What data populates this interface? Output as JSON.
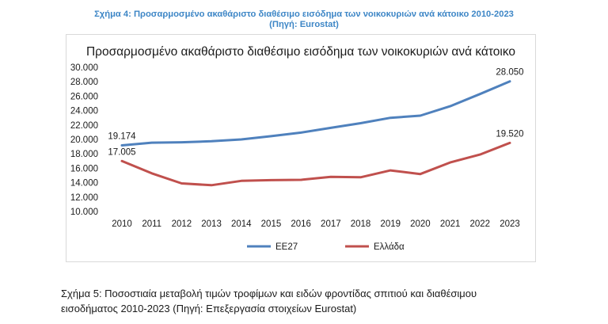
{
  "figure_caption": {
    "line1": "Σχήμα 4: Προσαρμοσμένο ακαθάριστο διαθέσιμο εισόδημα των νοικοκυριών ανά κάτοικο 2010-2023",
    "line2": "(Πηγή: Eurostat)"
  },
  "bottom_caption": {
    "line1": "Σχήμα 5: Ποσοστιαία μεταβολή τιμών τροφίμων και ειδών φροντίδας σπιτιού και διαθέσιμου",
    "line2": "εισοδήματος 2010-2023 (Πηγή: Επεξεργασία στοιχείων Eurostat)"
  },
  "colors": {
    "eu27": "#4f81bd",
    "greece": "#c0504d",
    "axis_text": "#1a1a1a"
  },
  "chart_data": {
    "type": "line",
    "title": "Προσαρμοσμένο ακαθάριστο διαθέσιμο εισόδημα των νοικοκυριών ανά κάτοικο",
    "categories": [
      "2010",
      "2011",
      "2012",
      "2013",
      "2014",
      "2015",
      "2016",
      "2017",
      "2018",
      "2019",
      "2020",
      "2021",
      "2022",
      "2023"
    ],
    "ylim": [
      10000,
      30000
    ],
    "y_ticks": [
      10000,
      12000,
      14000,
      16000,
      18000,
      20000,
      22000,
      24000,
      26000,
      28000,
      30000
    ],
    "y_tick_labels": [
      "10.000",
      "12.000",
      "14.000",
      "16.000",
      "18.000",
      "20.000",
      "22.000",
      "24.000",
      "26.000",
      "28.000",
      "30.000"
    ],
    "grid": false,
    "legend_position": "bottom",
    "series": [
      {
        "name": "ΕΕ27",
        "values": [
          19174,
          19550,
          19600,
          19750,
          20000,
          20450,
          20950,
          21600,
          22250,
          23000,
          23300,
          24600,
          26300,
          28050
        ]
      },
      {
        "name": "Ελλάδα",
        "values": [
          17005,
          15300,
          13900,
          13650,
          14250,
          14350,
          14400,
          14800,
          14750,
          15700,
          15200,
          16800,
          17900,
          19520
        ]
      }
    ],
    "data_labels": [
      {
        "series": 0,
        "index": 0,
        "text": "19.174"
      },
      {
        "series": 0,
        "index": 13,
        "text": "28.050"
      },
      {
        "series": 1,
        "index": 0,
        "text": "17.005"
      },
      {
        "series": 1,
        "index": 13,
        "text": "19.520"
      }
    ]
  }
}
